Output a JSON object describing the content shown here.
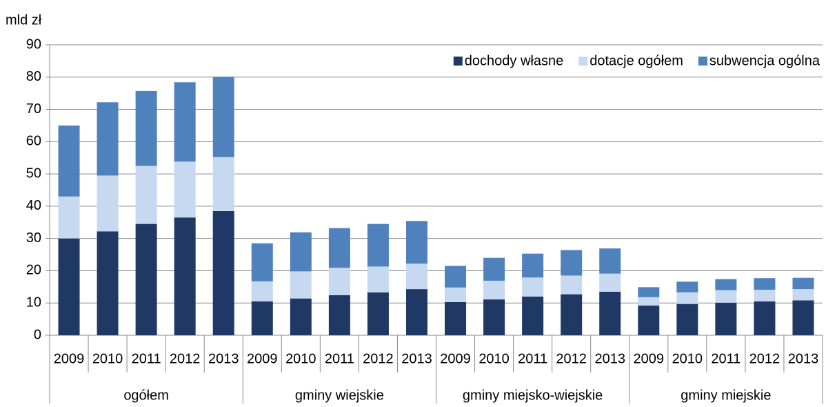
{
  "chart_data": {
    "type": "bar",
    "stacked": true,
    "y_label": "mld zł",
    "groups": [
      {
        "name": "ogółem",
        "categories": [
          "2009",
          "2010",
          "2011",
          "2012",
          "2013"
        ]
      },
      {
        "name": "gminy wiejskie",
        "categories": [
          "2009",
          "2010",
          "2011",
          "2012",
          "2013"
        ]
      },
      {
        "name": "gminy miejsko-wiejskie",
        "categories": [
          "2009",
          "2010",
          "2011",
          "2012",
          "2013"
        ]
      },
      {
        "name": "gminy miejskie",
        "categories": [
          "2009",
          "2010",
          "2011",
          "2012",
          "2013"
        ]
      }
    ],
    "series": [
      {
        "name": "dochody własne",
        "color": "#1f3864",
        "values": [
          30,
          32.2,
          34.5,
          36.5,
          38.5,
          10.5,
          11.4,
          12.4,
          13.3,
          14.3,
          10.3,
          11.1,
          12,
          12.7,
          13.5,
          9.2,
          9.7,
          10.1,
          10.5,
          10.8
        ]
      },
      {
        "name": "dotacje ogółem",
        "color": "#c6d9f1",
        "values": [
          13,
          17.3,
          18,
          17.3,
          16.7,
          6.2,
          8.4,
          8.5,
          8,
          7.9,
          4.5,
          5.8,
          5.9,
          5.8,
          5.6,
          2.6,
          3.6,
          3.9,
          3.6,
          3.5
        ]
      },
      {
        "name": "subwencja ogólna",
        "color": "#4f81bd",
        "values": [
          22,
          22.7,
          23.2,
          24.6,
          24.9,
          11.8,
          12.1,
          12.3,
          13.2,
          13.2,
          6.7,
          7.1,
          7.4,
          7.9,
          7.8,
          3.1,
          3.3,
          3.4,
          3.6,
          3.5
        ]
      }
    ],
    "ylim": [
      0,
      90
    ],
    "yticks": [
      0,
      10,
      20,
      30,
      40,
      50,
      60,
      70,
      80,
      90
    ],
    "grid": true,
    "legend": "top-right"
  }
}
